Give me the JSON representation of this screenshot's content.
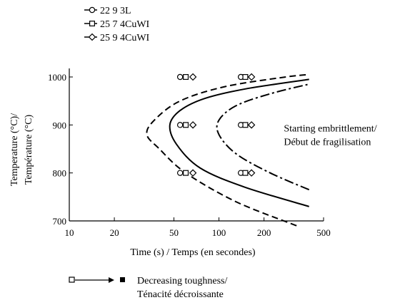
{
  "chart_data": {
    "type": "scatter",
    "xlabel": "Time (s) / Temps (en secondes)",
    "ylabel_lines": [
      "Temperature (°C)/",
      "Température (°C)"
    ],
    "x_scale": "log",
    "xlim": [
      10,
      500
    ],
    "ylim": [
      700,
      1000
    ],
    "x_ticks": [
      10,
      20,
      50,
      100,
      200,
      500
    ],
    "y_ticks": [
      700,
      800,
      900,
      1000
    ],
    "grid": false,
    "legend_position": "top-left",
    "series": [
      {
        "name": "22 9 3L",
        "marker": "circle",
        "points": [
          [
            55,
            800
          ],
          [
            140,
            800
          ],
          [
            55,
            900
          ],
          [
            140,
            900
          ],
          [
            55,
            1000
          ],
          [
            140,
            1000
          ]
        ]
      },
      {
        "name": "25 7 4CuWI",
        "marker": "square",
        "points": [
          [
            60,
            800
          ],
          [
            150,
            800
          ],
          [
            60,
            900
          ],
          [
            150,
            900
          ],
          [
            60,
            1000
          ],
          [
            150,
            1000
          ]
        ]
      },
      {
        "name": "25 9 4CuWI",
        "marker": "diamond",
        "points": [
          [
            67,
            800
          ],
          [
            165,
            800
          ],
          [
            67,
            900
          ],
          [
            165,
            900
          ],
          [
            67,
            1000
          ],
          [
            165,
            1000
          ]
        ]
      }
    ],
    "curves": [
      {
        "style": "dashed",
        "points": [
          [
            330,
            690
          ],
          [
            130,
            740
          ],
          [
            60,
            800
          ],
          [
            40,
            850
          ],
          [
            33,
            880
          ],
          [
            37,
            910
          ],
          [
            55,
            950
          ],
          [
            110,
            980
          ],
          [
            280,
            1000
          ],
          [
            400,
            1005
          ]
        ]
      },
      {
        "style": "solid",
        "points": [
          [
            400,
            730
          ],
          [
            150,
            770
          ],
          [
            75,
            810
          ],
          [
            52,
            860
          ],
          [
            47,
            900
          ],
          [
            55,
            930
          ],
          [
            80,
            955
          ],
          [
            150,
            975
          ],
          [
            400,
            995
          ]
        ]
      },
      {
        "style": "dash-dot",
        "points": [
          [
            400,
            765
          ],
          [
            220,
            800
          ],
          [
            130,
            840
          ],
          [
            100,
            880
          ],
          [
            100,
            910
          ],
          [
            130,
            940
          ],
          [
            220,
            965
          ],
          [
            400,
            985
          ]
        ]
      }
    ],
    "annotation": {
      "lines": [
        "Starting embrittlement/",
        "Début de fragilisation"
      ],
      "x": 230,
      "y": 870
    },
    "arrow_legend": {
      "lines": [
        "Decreasing toughness/",
        "Ténacité décroissante"
      ]
    }
  }
}
